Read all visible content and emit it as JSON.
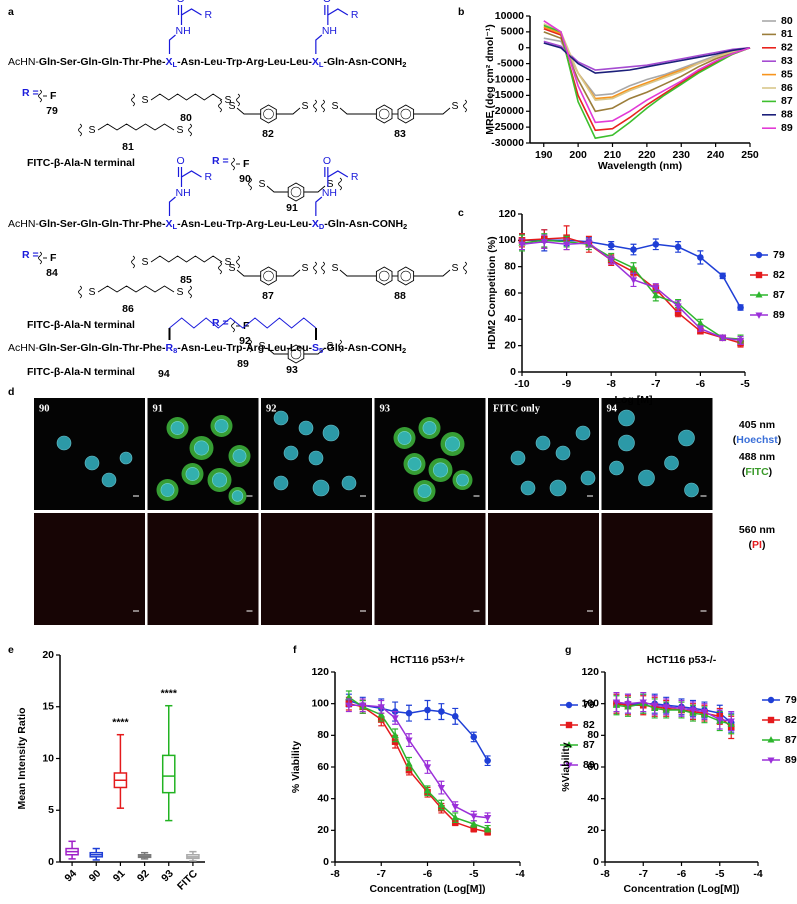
{
  "panel_labels": [
    "a",
    "b",
    "c",
    "d",
    "e",
    "f",
    "g"
  ],
  "structures": {
    "sidechain": {
      "nh": "NH",
      "o": "O",
      "r": "R"
    },
    "sulfur": "S",
    "fluorine": "F",
    "r_label": "R =",
    "fitc": "FITC-β-Ala-N terminal",
    "blocks": [
      {
        "sequence": [
          "AcHN-",
          "Gln-Ser-Gln-Gln-Thr-Phe-",
          "X",
          "L",
          "-Asn-Leu-Trp-Arg-Leu-Leu-",
          "X",
          "L",
          "-Gln-Asn-CONH",
          "2"
        ],
        "fluoro_id": "79",
        "linkers": [
          "80",
          "81",
          "82",
          "83"
        ],
        "fitc_fluoro_id": "90",
        "fitc_linker": "91"
      },
      {
        "sequence": [
          "AcHN-",
          "Gln-Ser-Gln-Gln-Thr-Phe-",
          "X",
          "L",
          "-Asn-Leu-Trp-Arg-Leu-Leu-",
          "X",
          "D",
          "-Gln-Asn-CONH",
          "2"
        ],
        "fluoro_id": "84",
        "linkers": [
          "85",
          "86",
          "87",
          "88"
        ],
        "fitc_fluoro_id": "92",
        "fitc_linker": "93"
      }
    ],
    "stapled": {
      "sequence": [
        "AcHN-",
        "Gln-Ser-Gln-Gln-Thr-Phe-",
        "R",
        "8",
        "-Asn-Leu-Trp-Arg-Leu-Leu-",
        "S",
        "5",
        "-Gln-Asn-CONH",
        "2"
      ],
      "id": "89",
      "fitc_id": "94"
    }
  },
  "microscopy": {
    "images": [
      "90",
      "91",
      "92",
      "93",
      "FITC only",
      "94"
    ],
    "channels": [
      {
        "wavelength": "405 nm",
        "dye": "Hoechst"
      },
      {
        "wavelength": "488 nm",
        "dye": "FITC"
      },
      {
        "wavelength": "560 nm",
        "dye": "PI"
      }
    ],
    "dye_colors": [
      "#3a6fd8",
      "#3a9a2a",
      "#e41a1c"
    ],
    "brackets": [
      "(",
      ")"
    ]
  },
  "chart_data": [
    {
      "type": "line",
      "x_label": "Wavelength (nm)",
      "y_label": "MRE (deg cm² dmol⁻¹)",
      "x": [
        190,
        195,
        200,
        205,
        210,
        215,
        220,
        225,
        230,
        235,
        240,
        245,
        250
      ],
      "xlim": [
        186,
        250
      ],
      "xticks": [
        190,
        200,
        210,
        220,
        230,
        240,
        250
      ],
      "ylim": [
        -30000,
        10000
      ],
      "yticks": [
        -30000,
        -25000,
        -20000,
        -15000,
        -10000,
        -5000,
        0,
        5000,
        10000
      ],
      "legend": "right",
      "series": [
        {
          "name": "80",
          "color": "#a8a8a8",
          "values": [
            3000,
            2000,
            -8000,
            -15000,
            -14500,
            -12000,
            -10000,
            -8500,
            -6500,
            -4500,
            -2500,
            -1000,
            0
          ]
        },
        {
          "name": "81",
          "color": "#9b7d3a",
          "values": [
            5000,
            3000,
            -10000,
            -20000,
            -19000,
            -16000,
            -14000,
            -11500,
            -9000,
            -6000,
            -3500,
            -1500,
            0
          ]
        },
        {
          "name": "82",
          "color": "#e8231d",
          "values": [
            6000,
            4000,
            -15000,
            -26000,
            -25500,
            -22000,
            -18000,
            -14500,
            -11000,
            -7500,
            -4500,
            -2000,
            0
          ]
        },
        {
          "name": "83",
          "color": "#a54bd1",
          "values": [
            2000,
            500,
            -4500,
            -7000,
            -6500,
            -6000,
            -5500,
            -4500,
            -3500,
            -2500,
            -1500,
            -500,
            0
          ]
        },
        {
          "name": "85",
          "color": "#f7941d",
          "values": [
            6500,
            4500,
            -8000,
            -16000,
            -15500,
            -13000,
            -11000,
            -9000,
            -7000,
            -5000,
            -3000,
            -1000,
            0
          ]
        },
        {
          "name": "86",
          "color": "#d8c78a",
          "values": [
            7500,
            5000,
            -8000,
            -16500,
            -16000,
            -13500,
            -11500,
            -9500,
            -7500,
            -5000,
            -3000,
            -1200,
            0
          ]
        },
        {
          "name": "87",
          "color": "#3dbf2e",
          "values": [
            7000,
            5000,
            -17000,
            -28500,
            -27500,
            -23500,
            -19000,
            -15000,
            -11500,
            -8000,
            -5000,
            -2000,
            0
          ]
        },
        {
          "name": "88",
          "color": "#1b1f7a",
          "values": [
            1500,
            0,
            -5000,
            -8000,
            -7500,
            -7000,
            -6000,
            -5000,
            -4000,
            -3000,
            -2000,
            -800,
            0
          ]
        },
        {
          "name": "89",
          "color": "#e23ad6",
          "values": [
            8500,
            5000,
            -12000,
            -23500,
            -23000,
            -20000,
            -16500,
            -13500,
            -10500,
            -7000,
            -4200,
            -1800,
            0
          ]
        }
      ]
    },
    {
      "type": "line",
      "x_label": "Log [M]",
      "y_label": "HDM2 Competition (%)",
      "x": [
        -10,
        -9.5,
        -9,
        -8.5,
        -8,
        -7.5,
        -7,
        -6.5,
        -6,
        -5.5,
        -5.1
      ],
      "xlim": [
        -10,
        -5
      ],
      "xticks": [
        -10,
        -9,
        -8,
        -7,
        -6,
        -5
      ],
      "ylim": [
        0,
        120
      ],
      "yticks": [
        0,
        20,
        40,
        60,
        80,
        100,
        120
      ],
      "legend": "right",
      "series": [
        {
          "name": "79",
          "color": "#1f3fd6",
          "marker": "circle",
          "values": [
            100,
            100,
            100,
            99,
            96,
            93,
            97,
            95,
            87,
            73,
            49
          ],
          "errors": [
            5,
            8,
            4,
            3,
            3,
            4,
            4,
            4,
            5,
            2,
            2
          ]
        },
        {
          "name": "82",
          "color": "#e41a1c",
          "marker": "square",
          "values": [
            100,
            101,
            102,
            97,
            85,
            76,
            63,
            45,
            31,
            26,
            22
          ],
          "errors": [
            5,
            7,
            9,
            6,
            4,
            3,
            3,
            3,
            2,
            2,
            3
          ]
        },
        {
          "name": "87",
          "color": "#2db52d",
          "marker": "triangle",
          "values": [
            98,
            100,
            99,
            97,
            87,
            79,
            58,
            52,
            37,
            26,
            25
          ],
          "errors": [
            6,
            5,
            4,
            4,
            3,
            4,
            4,
            3,
            3,
            2,
            3
          ]
        },
        {
          "name": "89",
          "color": "#9b30d9",
          "marker": "triangle-down",
          "values": [
            97,
            99,
            97,
            98,
            85,
            70,
            64,
            50,
            33,
            26,
            24
          ],
          "errors": [
            4,
            5,
            4,
            3,
            3,
            5,
            3,
            4,
            2,
            2,
            3
          ]
        }
      ]
    },
    {
      "type": "box",
      "y_label": "Mean Intensity Ratio",
      "categories": [
        "94",
        "90",
        "91",
        "92",
        "93",
        "FITC"
      ],
      "colors": [
        "#a020c8",
        "#1f3fd6",
        "#e41a1c",
        "#7a7a7a",
        "#22b322",
        "#aaaaaa"
      ],
      "boxes": [
        {
          "min": 0.3,
          "q1": 0.7,
          "median": 1.0,
          "q3": 1.3,
          "max": 2.0
        },
        {
          "min": 0.2,
          "q1": 0.5,
          "median": 0.7,
          "q3": 0.9,
          "max": 1.3
        },
        {
          "min": 5.2,
          "q1": 7.2,
          "median": 7.9,
          "q3": 8.6,
          "max": 12.3
        },
        {
          "min": 0.3,
          "q1": 0.45,
          "median": 0.55,
          "q3": 0.7,
          "max": 0.9
        },
        {
          "min": 4.0,
          "q1": 6.7,
          "median": 8.3,
          "q3": 10.3,
          "max": 15.1
        },
        {
          "min": 0.1,
          "q1": 0.35,
          "median": 0.5,
          "q3": 0.7,
          "max": 1.0
        }
      ],
      "ylim": [
        0,
        20
      ],
      "yticks": [
        0,
        5,
        10,
        15,
        20
      ],
      "annotations": [
        {
          "text": "****",
          "category": "91"
        },
        {
          "text": "****",
          "category": "93"
        }
      ]
    },
    {
      "type": "line",
      "title": "HCT116 p53+/+",
      "x_label": "Concentration (Log[M])",
      "y_label": "% Viability",
      "x": [
        -7.7,
        -7.4,
        -7.0,
        -6.7,
        -6.4,
        -6.0,
        -5.7,
        -5.4,
        -5.0,
        -4.7
      ],
      "xlim": [
        -8,
        -4
      ],
      "xticks": [
        -8,
        -7,
        -6,
        -5,
        -4
      ],
      "ylim": [
        0,
        120
      ],
      "yticks": [
        0,
        20,
        40,
        60,
        80,
        100,
        120
      ],
      "legend": "right",
      "series": [
        {
          "name": "79",
          "color": "#1f3fd6",
          "marker": "circle",
          "values": [
            102,
            99,
            97,
            95,
            94,
            96,
            95,
            92,
            79,
            64
          ],
          "errors": [
            4,
            5,
            6,
            6,
            5,
            6,
            5,
            5,
            3,
            3
          ]
        },
        {
          "name": "82",
          "color": "#e41a1c",
          "marker": "square",
          "values": [
            100,
            98,
            90,
            76,
            58,
            44,
            34,
            25,
            21,
            19
          ],
          "errors": [
            4,
            4,
            4,
            4,
            3,
            3,
            3,
            2,
            2,
            2
          ]
        },
        {
          "name": "87",
          "color": "#2db52d",
          "marker": "triangle",
          "values": [
            104,
            98,
            93,
            80,
            62,
            45,
            36,
            28,
            24,
            21
          ],
          "errors": [
            4,
            4,
            4,
            4,
            4,
            3,
            3,
            3,
            2,
            2
          ]
        },
        {
          "name": "89",
          "color": "#9b30d9",
          "marker": "triangle-down",
          "values": [
            99,
            99,
            98,
            91,
            77,
            60,
            47,
            35,
            29,
            28
          ],
          "errors": [
            4,
            4,
            4,
            4,
            4,
            4,
            4,
            3,
            3,
            3
          ]
        }
      ]
    },
    {
      "type": "line",
      "title": "HCT116 p53-/-",
      "x_label": "Concentration (Log[M])",
      "y_label": "%Viability",
      "x": [
        -7.7,
        -7.4,
        -7.0,
        -6.7,
        -6.4,
        -6.0,
        -5.7,
        -5.4,
        -5.0,
        -4.7
      ],
      "xlim": [
        -8,
        -4
      ],
      "xticks": [
        -8,
        -7,
        -6,
        -5,
        -4
      ],
      "ylim": [
        0,
        120
      ],
      "yticks": [
        0,
        20,
        40,
        60,
        80,
        100,
        120
      ],
      "legend": "right",
      "series": [
        {
          "name": "79",
          "color": "#1f3fd6",
          "marker": "circle",
          "values": [
            100,
            100,
            100,
            100,
            99,
            98,
            97,
            96,
            94,
            88
          ],
          "errors": [
            6,
            6,
            6,
            6,
            5,
            5,
            5,
            5,
            5,
            6
          ]
        },
        {
          "name": "82",
          "color": "#e41a1c",
          "marker": "square",
          "values": [
            100,
            99,
            99,
            98,
            97,
            96,
            95,
            94,
            92,
            85
          ],
          "errors": [
            6,
            6,
            6,
            6,
            5,
            5,
            5,
            5,
            5,
            7
          ]
        },
        {
          "name": "87",
          "color": "#2db52d",
          "marker": "triangle",
          "values": [
            99,
            98,
            100,
            97,
            96,
            96,
            94,
            93,
            89,
            87
          ],
          "errors": [
            6,
            6,
            6,
            6,
            5,
            5,
            5,
            5,
            6,
            6
          ]
        },
        {
          "name": "89",
          "color": "#9b30d9",
          "marker": "triangle-down",
          "values": [
            101,
            100,
            101,
            99,
            98,
            97,
            96,
            95,
            90,
            89
          ],
          "errors": [
            6,
            6,
            6,
            6,
            5,
            5,
            5,
            5,
            6,
            6
          ]
        }
      ]
    }
  ]
}
